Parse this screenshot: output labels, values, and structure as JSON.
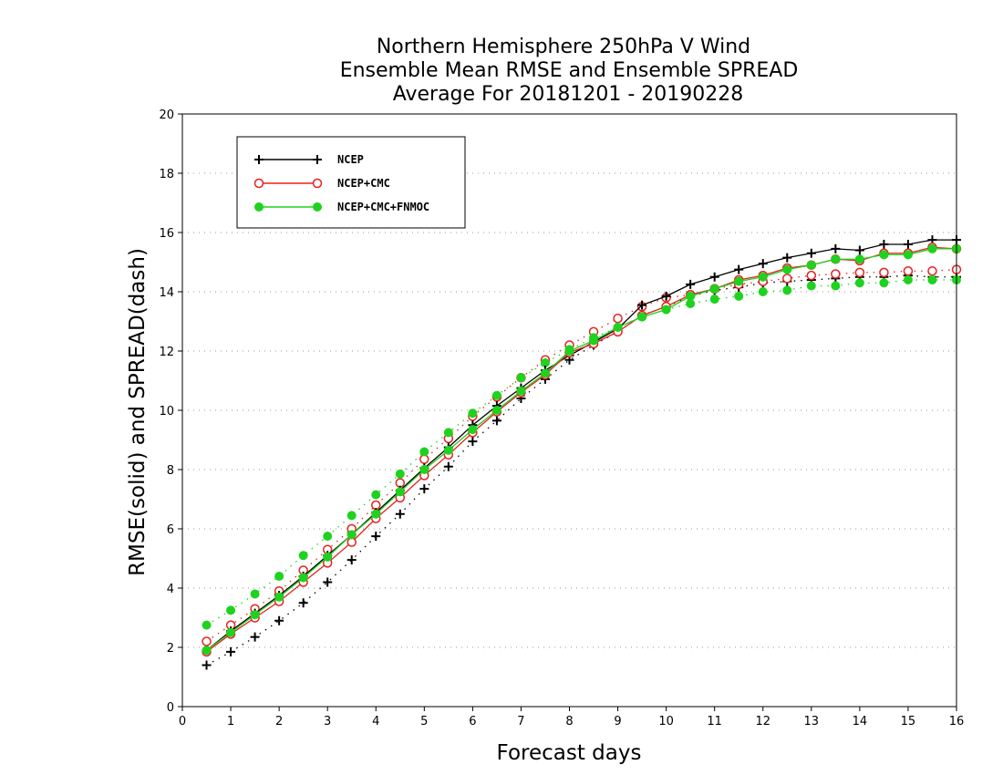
{
  "chart_data": {
    "type": "line",
    "title": [
      "Northern Hemisphere 250hPa V Wind",
      "Ensemble Mean RMSE and Ensemble SPREAD",
      "Average For 20181201 - 20190228"
    ],
    "xlabel": "Forecast days",
    "ylabel": "RMSE(solid) and SPREAD(dash)",
    "xlim": [
      0,
      16
    ],
    "ylim": [
      0,
      20
    ],
    "xticks": [
      "0",
      "1",
      "2",
      "3",
      "4",
      "5",
      "6",
      "7",
      "8",
      "9",
      "10",
      "11",
      "12",
      "13",
      "14",
      "15",
      "16"
    ],
    "yticks": [
      "0",
      "2",
      "4",
      "6",
      "8",
      "10",
      "12",
      "14",
      "16",
      "18",
      "20"
    ],
    "grid": "horizontal dotted",
    "legend_position": "top-left",
    "legend": [
      "NCEP",
      "NCEP+CMC",
      "NCEP+CMC+FNMOC"
    ],
    "x": [
      0.5,
      1,
      1.5,
      2,
      2.5,
      3,
      3.5,
      4,
      4.5,
      5,
      5.5,
      6,
      6.5,
      7,
      7.5,
      8,
      8.5,
      9,
      9.5,
      10,
      10.5,
      11,
      11.5,
      12,
      12.5,
      13,
      13.5,
      14,
      14.5,
      15,
      15.5,
      16
    ],
    "series": [
      {
        "name": "NCEP",
        "metric": "RMSE",
        "style": "solid",
        "marker": "plus",
        "color": "#000000",
        "values": [
          1.9,
          2.55,
          3.15,
          3.75,
          4.4,
          5.1,
          5.8,
          6.55,
          7.3,
          8.05,
          8.75,
          9.5,
          10.15,
          10.75,
          11.35,
          11.85,
          12.3,
          12.75,
          13.55,
          13.85,
          14.25,
          14.5,
          14.75,
          14.95,
          15.15,
          15.3,
          15.45,
          15.4,
          15.6,
          15.6,
          15.75,
          15.75
        ]
      },
      {
        "name": "NCEP",
        "metric": "SPREAD",
        "style": "dash",
        "marker": "plus",
        "color": "#000000",
        "values": [
          1.4,
          1.85,
          2.35,
          2.9,
          3.5,
          4.2,
          4.95,
          5.75,
          6.5,
          7.35,
          8.1,
          8.95,
          9.65,
          10.4,
          11.05,
          11.7,
          12.2,
          12.65,
          13.2,
          13.5,
          13.85,
          14.05,
          14.15,
          14.3,
          14.35,
          14.4,
          14.45,
          14.5,
          14.5,
          14.55,
          14.5,
          14.5
        ]
      },
      {
        "name": "NCEP+CMC",
        "metric": "RMSE",
        "style": "solid",
        "marker": "open-circle",
        "color": "#e8201e",
        "values": [
          1.85,
          2.45,
          3.0,
          3.55,
          4.2,
          4.85,
          5.55,
          6.35,
          7.05,
          7.8,
          8.5,
          9.25,
          9.95,
          10.6,
          11.2,
          11.95,
          12.25,
          12.65,
          13.2,
          13.5,
          13.9,
          14.1,
          14.4,
          14.55,
          14.8,
          14.9,
          15.1,
          15.05,
          15.3,
          15.3,
          15.5,
          15.45
        ]
      },
      {
        "name": "NCEP+CMC",
        "metric": "SPREAD",
        "style": "dash",
        "marker": "open-circle",
        "color": "#e8201e",
        "values": [
          2.2,
          2.75,
          3.3,
          3.9,
          4.6,
          5.3,
          6.0,
          6.8,
          7.55,
          8.35,
          9.05,
          9.8,
          10.45,
          11.1,
          11.7,
          12.2,
          12.65,
          13.1,
          13.5,
          13.8,
          13.9,
          14.1,
          14.25,
          14.35,
          14.45,
          14.55,
          14.6,
          14.65,
          14.65,
          14.7,
          14.7,
          14.75
        ]
      },
      {
        "name": "NCEP+CMC+FNMOC",
        "metric": "RMSE",
        "style": "solid",
        "marker": "filled-circle",
        "color": "#1fd21f",
        "values": [
          1.9,
          2.5,
          3.1,
          3.7,
          4.35,
          5.05,
          5.8,
          6.5,
          7.25,
          8.0,
          8.65,
          9.35,
          10.0,
          10.65,
          11.25,
          12.0,
          12.35,
          12.8,
          13.15,
          13.4,
          13.85,
          14.1,
          14.35,
          14.5,
          14.75,
          14.9,
          15.1,
          15.1,
          15.25,
          15.25,
          15.45,
          15.45
        ]
      },
      {
        "name": "NCEP+CMC+FNMOC",
        "metric": "SPREAD",
        "style": "dash",
        "marker": "filled-circle",
        "color": "#1fd21f",
        "values": [
          2.75,
          3.25,
          3.8,
          4.4,
          5.1,
          5.75,
          6.45,
          7.15,
          7.85,
          8.6,
          9.25,
          9.9,
          10.5,
          11.1,
          11.6,
          12.05,
          12.45,
          12.8,
          13.15,
          13.4,
          13.6,
          13.75,
          13.85,
          14.0,
          14.05,
          14.2,
          14.2,
          14.3,
          14.3,
          14.4,
          14.4,
          14.4
        ]
      }
    ]
  }
}
